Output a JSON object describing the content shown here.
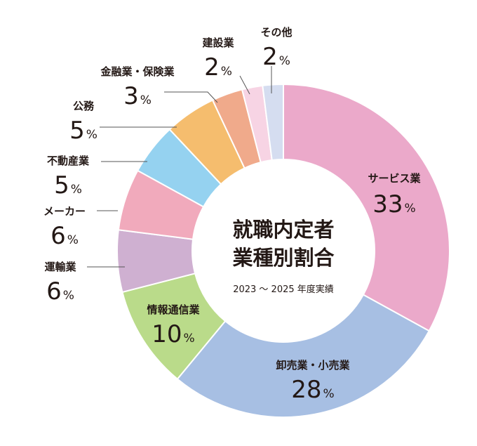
{
  "chart_data": {
    "type": "donut",
    "title_lines": [
      "就職内定者",
      "業種別割合"
    ],
    "subtitle": "2023 ～ 2025 年度実績",
    "unit": "%",
    "slices": [
      {
        "name": "サービス業",
        "value": 33,
        "color": "#eba9ca"
      },
      {
        "name": "卸売業・小売業",
        "value": 28,
        "color": "#a7bfe3"
      },
      {
        "name": "情報通信業",
        "value": 10,
        "color": "#badb8a"
      },
      {
        "name": "運輸業",
        "value": 6,
        "color": "#cfb0d1"
      },
      {
        "name": "メーカー",
        "value": 6,
        "color": "#f1aabc"
      },
      {
        "name": "不動産業",
        "value": 5,
        "color": "#95d2f0"
      },
      {
        "name": "公務",
        "value": 5,
        "color": "#f5bd6e"
      },
      {
        "name": "金融業・保険業",
        "value": 3,
        "color": "#f0aa8b"
      },
      {
        "name": "建設業",
        "value": 2,
        "color": "#f7d4e4"
      },
      {
        "name": "その他",
        "value": 2,
        "color": "#d5ddf0"
      }
    ]
  }
}
